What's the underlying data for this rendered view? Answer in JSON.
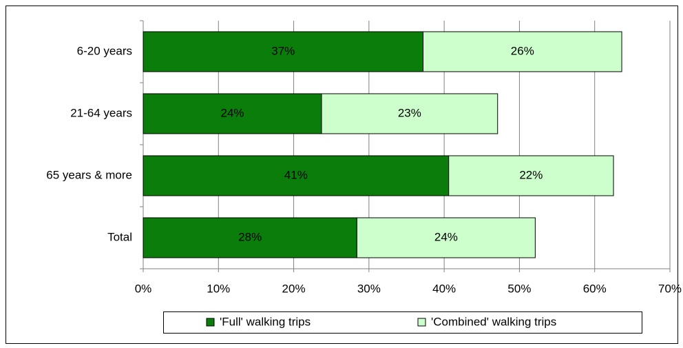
{
  "chart_data": {
    "type": "stacked-barh",
    "categories": [
      "6-20  years",
      "21-64 years",
      "65 years  & more",
      "Total"
    ],
    "series": [
      {
        "name": "'Full' walking trips",
        "color": "#0b7d0b",
        "label_color": "#ffffff",
        "values": [
          37.2,
          23.7,
          40.6,
          28.4
        ],
        "value_labels": [
          "37%",
          "24%",
          "41%",
          "28%"
        ]
      },
      {
        "name": "'Combined' walking trips",
        "color": "#ccffcc",
        "label_color": "#000000",
        "values": [
          26.4,
          23.4,
          21.9,
          23.7
        ],
        "value_labels": [
          "26%",
          "23%",
          "22%",
          "24%"
        ]
      }
    ],
    "xlim": [
      0,
      70
    ],
    "xticks": [
      {
        "value": 0,
        "label": "0%"
      },
      {
        "value": 10,
        "label": "10%"
      },
      {
        "value": 20,
        "label": "20%"
      },
      {
        "value": 30,
        "label": "30%"
      },
      {
        "value": 40,
        "label": "40%"
      },
      {
        "value": 50,
        "label": "50%"
      },
      {
        "value": 60,
        "label": "60%"
      },
      {
        "value": 70,
        "label": "70%"
      }
    ],
    "grid": true,
    "legend": "bottom"
  }
}
